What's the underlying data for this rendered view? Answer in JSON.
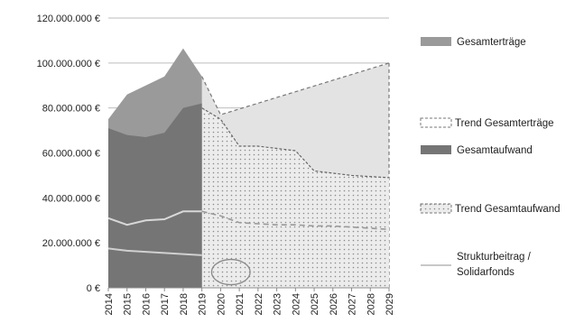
{
  "chart_data": {
    "type": "area",
    "title": "",
    "xlabel": "",
    "ylabel": "",
    "categories": [
      "2014",
      "2015",
      "2016",
      "2017",
      "2018",
      "2019",
      "2020",
      "2021",
      "2022",
      "2023",
      "2024",
      "2025",
      "2026",
      "2027",
      "2028",
      "2029"
    ],
    "ylim": [
      0,
      120000000
    ],
    "y_tick_labels": [
      "0 €",
      "20.000.000 €",
      "40.000.000 €",
      "60.000.000 €",
      "80.000.000 €",
      "100.000.000 €",
      "120.000.000 €"
    ],
    "grid": true,
    "legend_position": "right",
    "series": [
      {
        "name": "Gesamterträge",
        "style": "solid-area",
        "color": "#9a9a9a",
        "x": [
          "2014",
          "2015",
          "2016",
          "2017",
          "2018",
          "2019"
        ],
        "values": [
          75000000,
          86000000,
          90000000,
          94000000,
          106500000,
          94000000
        ]
      },
      {
        "name": "Trend Gesamterträge",
        "style": "dashed-area",
        "color": "#e3e3e3",
        "x": [
          "2019",
          "2020",
          "2029"
        ],
        "values": [
          94000000,
          77000000,
          100000000
        ]
      },
      {
        "name": "Gesamtaufwand",
        "style": "solid-area",
        "color": "#757575",
        "x": [
          "2014",
          "2015",
          "2016",
          "2017",
          "2018",
          "2019"
        ],
        "values": [
          71000000,
          68000000,
          67000000,
          69000000,
          80000000,
          82000000
        ]
      },
      {
        "name": "Trend Gesamtaufwand",
        "style": "dotted-area",
        "color": "#d6d6d6",
        "x": [
          "2019",
          "2020",
          "2021",
          "2022",
          "2023",
          "2024",
          "2025",
          "2026",
          "2027",
          "2028",
          "2029"
        ],
        "values": [
          80000000,
          75000000,
          63000000,
          63000000,
          62000000,
          61000000,
          52000000,
          51000000,
          50000000,
          49500000,
          49000000
        ]
      },
      {
        "name": "Strukturbeitrag / Solidarfonds",
        "style": "line",
        "color": "#c8c8c8",
        "x": [
          "2014",
          "2015",
          "2016",
          "2017",
          "2018",
          "2019",
          "2020",
          "2021",
          "2022",
          "2023",
          "2024",
          "2025",
          "2026",
          "2027",
          "2028",
          "2029"
        ],
        "values": [
          31000000,
          28000000,
          30000000,
          30500000,
          34000000,
          34000000,
          32000000,
          29000000,
          28500000,
          28000000,
          28000000,
          27500000,
          27500000,
          27000000,
          26500000,
          26000000
        ]
      },
      {
        "name": "",
        "style": "line",
        "color": "#d0d0d0",
        "x": [
          "2014",
          "2015",
          "2016",
          "2017",
          "2018",
          "2019"
        ],
        "values": [
          17500000,
          16500000,
          16000000,
          15500000,
          15000000,
          14500000
        ]
      }
    ],
    "annotations": [
      {
        "type": "ellipse",
        "x_start": "2020",
        "x_end": "2021",
        "y_center": 7000000
      }
    ]
  },
  "legend": [
    {
      "label": "Gesamterträge",
      "swatch": "solid",
      "color": "#9a9a9a"
    },
    {
      "label": "Trend Gesamterträge",
      "swatch": "dashed",
      "color": "#ffffff"
    },
    {
      "label": "Gesamtaufwand",
      "swatch": "solid",
      "color": "#757575"
    },
    {
      "label": "Trend Gesamtaufwand",
      "swatch": "dotted",
      "color": "#e8e8e8"
    },
    {
      "label": "Strukturbeitrag /",
      "label2": "Solidarfonds",
      "swatch": "line",
      "color": "#c8c8c8"
    }
  ]
}
